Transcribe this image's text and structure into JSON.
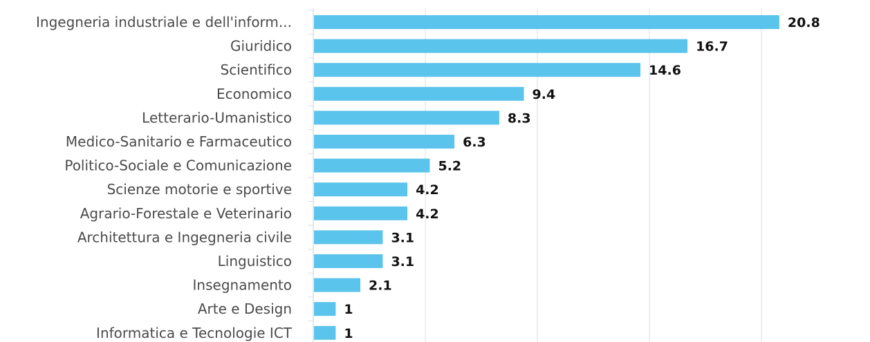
{
  "chart_data": {
    "type": "bar",
    "orientation": "horizontal",
    "categories": [
      "Ingegneria industriale e dell'inform...",
      "Giuridico",
      "Scientifico",
      "Economico",
      "Letterario-Umanistico",
      "Medico-Sanitario e Farmaceutico",
      "Politico-Sociale e Comunicazione",
      "Scienze motorie e sportive",
      "Agrario-Forestale e Veterinario",
      "Architettura e Ingegneria civile",
      "Linguistico",
      "Insegnamento",
      "Arte e Design",
      "Informatica e Tecnologie ICT"
    ],
    "values": [
      20.8,
      16.7,
      14.6,
      9.4,
      8.3,
      6.3,
      5.2,
      4.2,
      4.2,
      3.1,
      3.1,
      2.1,
      1,
      1
    ],
    "value_labels": [
      "20.8",
      "16.7",
      "14.6",
      "9.4",
      "8.3",
      "6.3",
      "5.2",
      "4.2",
      "4.2",
      "3.1",
      "3.1",
      "2.1",
      "1",
      "1"
    ],
    "title": "",
    "xlabel": "",
    "ylabel": "",
    "xlim": [
      0,
      25
    ],
    "grid": true,
    "gridlines_at": [
      0,
      5,
      10,
      15,
      20
    ],
    "legend": "none",
    "bar_color": "#5bc4ec",
    "grid_color": "#d9dde6"
  }
}
